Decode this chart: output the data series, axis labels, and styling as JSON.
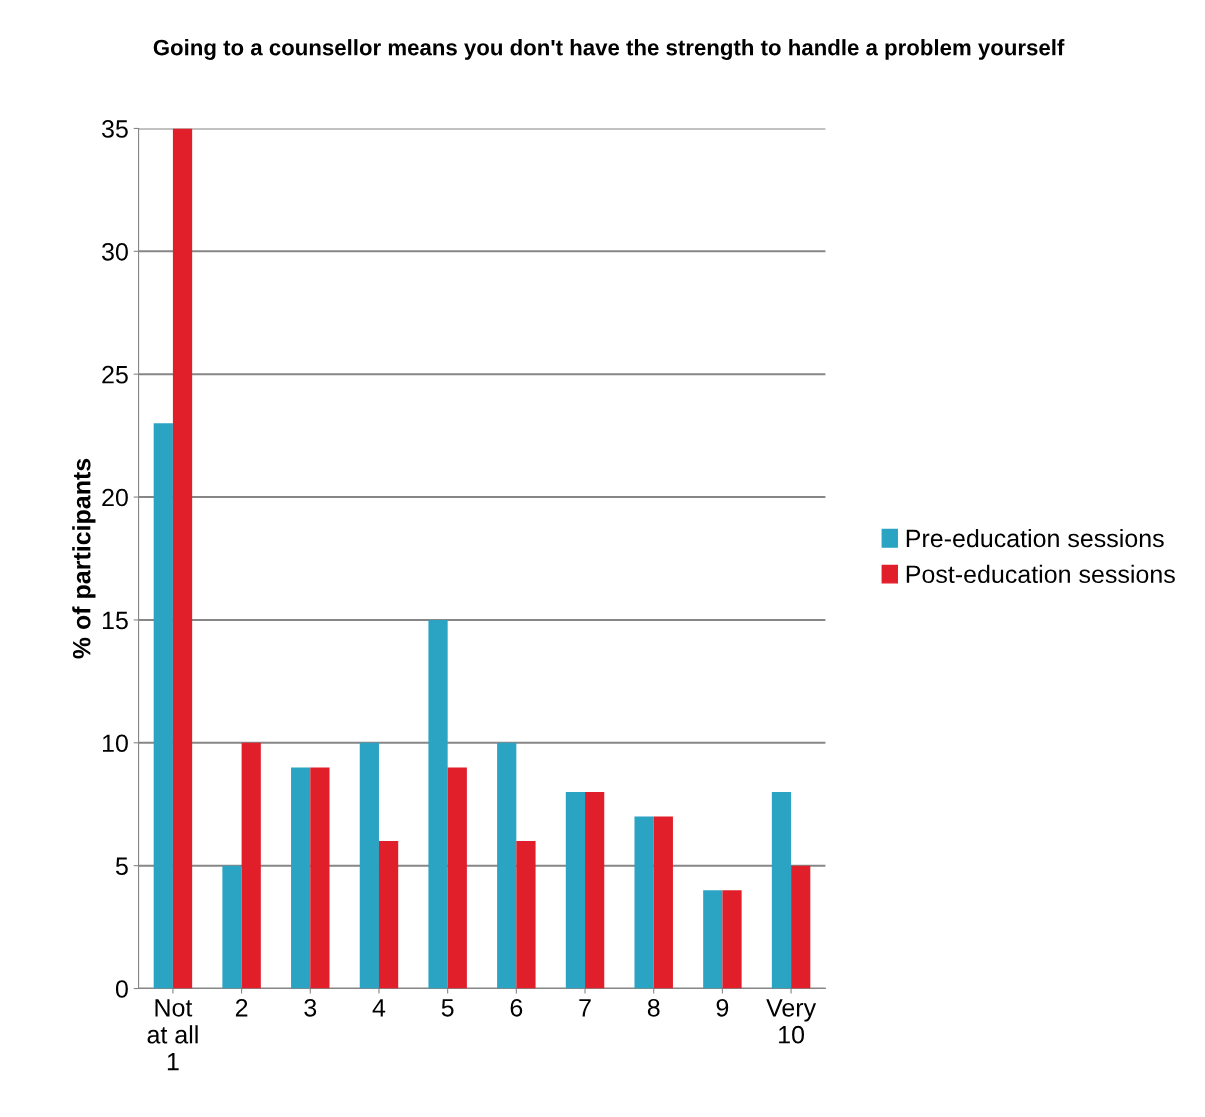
{
  "chart_data": {
    "type": "bar",
    "title": "Going to a counsellor means you don't have the strength to handle a problem yourself",
    "ylabel": "% of participants",
    "categories": [
      "Not\nat all\n1",
      "2",
      "3",
      "4",
      "5",
      "6",
      "7",
      "8",
      "9",
      "Very\n10"
    ],
    "series": [
      {
        "name": "Pre-education sessions",
        "color": "#2ba3c2",
        "values": [
          23,
          5,
          9,
          10,
          15,
          10,
          8,
          7,
          4,
          8
        ]
      },
      {
        "name": "Post-education sessions",
        "color": "#e01f2b",
        "values": [
          35,
          10,
          9,
          6,
          9,
          6,
          8,
          7,
          4,
          5
        ]
      }
    ],
    "ylim": [
      0,
      35
    ],
    "yticks": [
      0,
      5,
      10,
      15,
      20,
      25,
      30,
      35
    ],
    "grid": "y",
    "legend": "right"
  }
}
